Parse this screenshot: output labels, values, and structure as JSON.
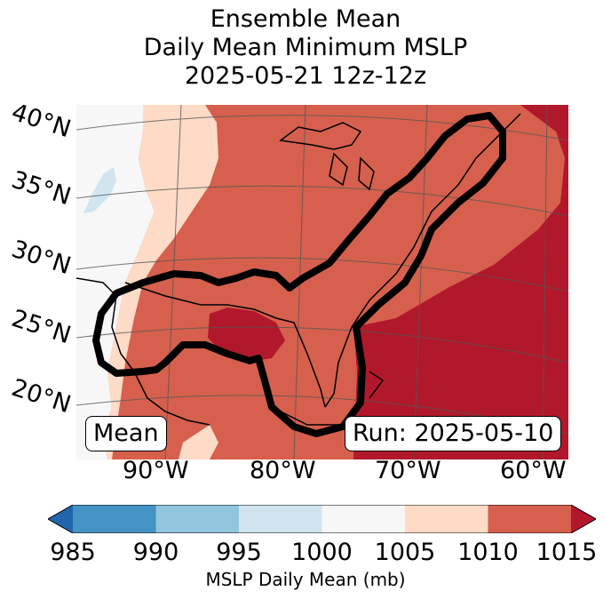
{
  "title": {
    "line1": "Ensemble Mean",
    "line2": "Daily Mean Minimum MSLP",
    "line3": "2025-05-21 12z-12z"
  },
  "map": {
    "lat_labels": [
      "40°N",
      "35°N",
      "30°N",
      "25°N",
      "20°N"
    ],
    "lon_labels": [
      "90°W",
      "80°W",
      "70°W",
      "60°W"
    ],
    "legend_box": "Mean",
    "run_box": "Run: 2025-05-10",
    "field": "MSLP daily mean (mb)"
  },
  "colorbar": {
    "ticks": [
      "985",
      "990",
      "995",
      "1000",
      "1005",
      "1010",
      "1015"
    ],
    "label": "MSLP Daily Mean (mb)",
    "colors": [
      "#2166ac",
      "#4393c3",
      "#92c5de",
      "#d1e5f0",
      "#f7f7f7",
      "#fddbc7",
      "#d6604d",
      "#b2182b"
    ]
  }
}
